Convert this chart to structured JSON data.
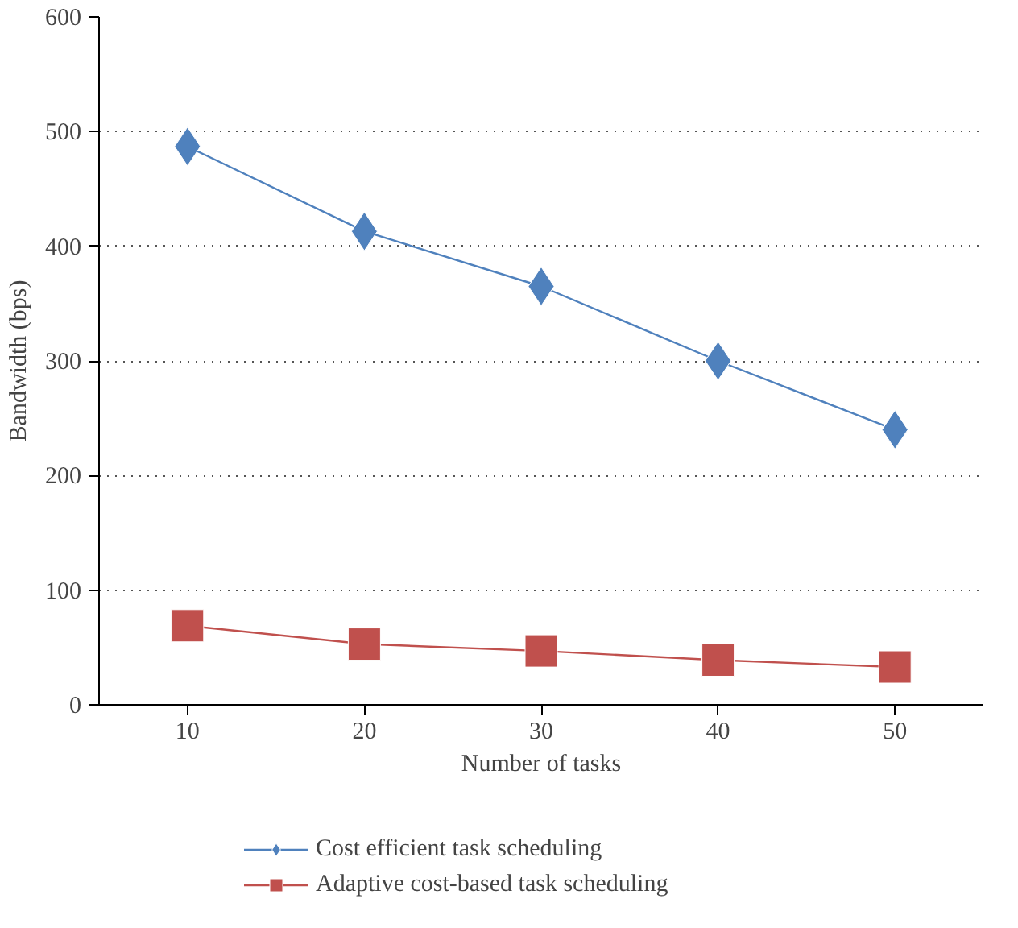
{
  "chart_data": {
    "type": "line",
    "xlabel": "Number of tasks",
    "ylabel": "Bandwidth (bps)",
    "categories": [
      "10",
      "20",
      "30",
      "40",
      "50"
    ],
    "ylim": [
      0,
      600
    ],
    "yticks": [
      0,
      100,
      200,
      300,
      400,
      500,
      600
    ],
    "grid": "y",
    "legend": "bottom",
    "series": [
      {
        "name": "Cost efficient task scheduling",
        "color": "#4f81bd",
        "marker": "diamond",
        "values": [
          487,
          413,
          365,
          300,
          240
        ]
      },
      {
        "name": "Adaptive cost-based task scheduling",
        "color": "#c0504d",
        "marker": "square",
        "values": [
          69,
          53,
          47,
          39,
          33
        ]
      }
    ]
  }
}
